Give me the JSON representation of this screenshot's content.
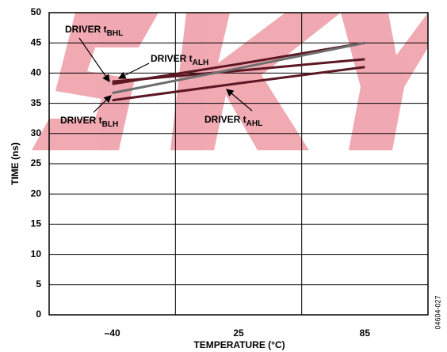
{
  "chart_data": {
    "type": "line",
    "ylabel": "TIME (ns)",
    "xlabel": "TEMPERATURE (°C)",
    "categories": [
      "–40",
      "25",
      "85"
    ],
    "series": [
      {
        "color": "#5b1822",
        "values": [
          38.2,
          41.5,
          45
        ]
      },
      {
        "color": "#5b1822",
        "values": [
          38.6,
          40.4,
          42.3
        ]
      },
      {
        "color": "#6e6e6e",
        "values": [
          36.7,
          40.8,
          45
        ]
      },
      {
        "color": "#5b1822",
        "values": [
          35.5,
          38.3,
          41
        ]
      }
    ],
    "annotations": [
      {
        "text": "DRIVER t",
        "sub": "BHL"
      },
      {
        "text": "DRIVER t",
        "sub": "ALH"
      },
      {
        "text": "DRIVER t",
        "sub": "BLH"
      },
      {
        "text": "DRIVER t",
        "sub": "AHL"
      }
    ],
    "ylim": [
      0,
      50
    ],
    "yticks": [
      0,
      5,
      10,
      15,
      20,
      25,
      30,
      35,
      40,
      45,
      50
    ],
    "grid": true,
    "side_note": "04604-027"
  }
}
